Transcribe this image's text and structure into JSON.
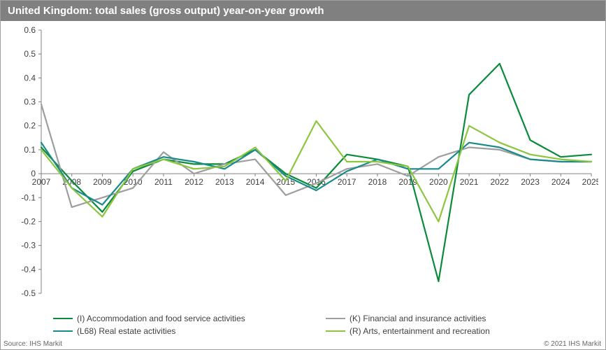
{
  "title": "United Kingdom: total sales (gross output) year-on-year growth",
  "footer_source": "Source: IHS Markit",
  "footer_copy": "© 2021 IHS Markit",
  "chart": {
    "type": "line",
    "background_color": "#ffffff",
    "title_bar_bg": "#808080",
    "title_color": "#ffffff",
    "title_fontsize": 15,
    "axis_fontsize": 12,
    "axis_color": "#808080",
    "axis_text_color": "#404040",
    "xlim": [
      2007,
      2025
    ],
    "ylim": [
      -0.5,
      0.6
    ],
    "ytick_step": 0.1,
    "yticks": [
      -0.5,
      -0.4,
      -0.3,
      -0.2,
      -0.1,
      0,
      0.1,
      0.2,
      0.3,
      0.4,
      0.5,
      0.6
    ],
    "xticks": [
      2007,
      2008,
      2009,
      2010,
      2011,
      2012,
      2013,
      2014,
      2015,
      2016,
      2017,
      2018,
      2019,
      2020,
      2021,
      2022,
      2023,
      2024,
      2025
    ],
    "line_width": 2.2,
    "series": [
      {
        "key": "I",
        "label": "(I) Accommodation and food service activities",
        "color": "#0a8a3a",
        "values": [
          0.11,
          -0.03,
          -0.16,
          0.01,
          0.06,
          0.04,
          0.04,
          0.1,
          0.0,
          -0.06,
          0.08,
          0.06,
          0.03,
          -0.45,
          0.33,
          0.46,
          0.14,
          0.07,
          0.08
        ]
      },
      {
        "key": "K",
        "label": "(K) Financial and insurance activities",
        "color": "#9e9e9e",
        "values": [
          0.29,
          -0.14,
          -0.1,
          -0.06,
          0.09,
          0.0,
          0.04,
          0.06,
          -0.09,
          -0.04,
          0.02,
          0.04,
          -0.01,
          0.07,
          0.11,
          0.1,
          0.06,
          0.05,
          0.05
        ]
      },
      {
        "key": "L68",
        "label": "(L68) Real estate activities",
        "color": "#1a8a8c",
        "values": [
          0.13,
          -0.06,
          -0.13,
          0.02,
          0.07,
          0.05,
          0.02,
          0.1,
          -0.01,
          -0.07,
          0.01,
          0.06,
          0.02,
          0.02,
          0.13,
          0.11,
          0.06,
          0.05,
          0.05
        ]
      },
      {
        "key": "R",
        "label": "(R) Arts, entertainment and recreation",
        "color": "#8cc63f",
        "values": [
          0.1,
          -0.06,
          -0.18,
          0.02,
          0.06,
          0.02,
          0.03,
          0.11,
          -0.03,
          0.22,
          0.05,
          0.05,
          0.03,
          -0.2,
          0.2,
          0.13,
          0.08,
          0.06,
          0.05
        ]
      }
    ]
  }
}
